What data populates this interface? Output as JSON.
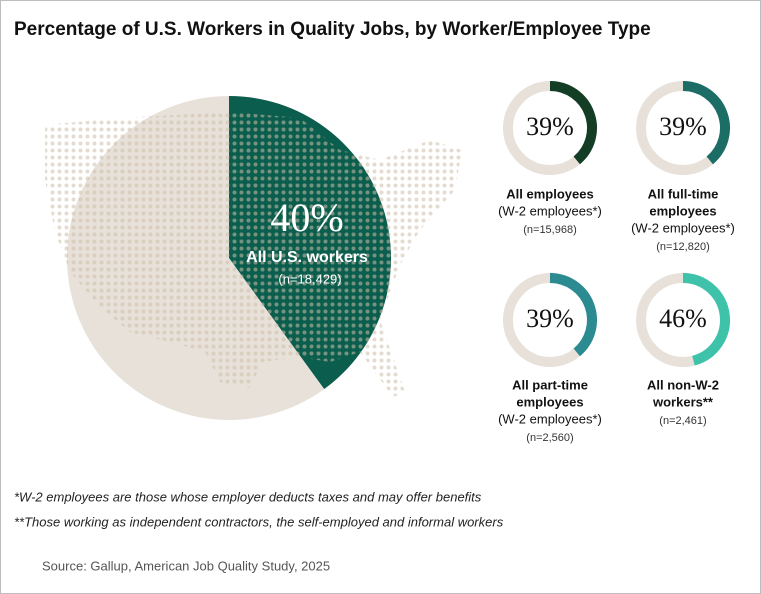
{
  "title": "Percentage of U.S. Workers in Quality Jobs, by Worker/Employee Type",
  "chart_data": [
    {
      "type": "pie",
      "values": [
        40
      ],
      "value_labels": [
        "40%"
      ],
      "label_lines": [
        "All U.S. workers"
      ],
      "n": "(n=18,429)",
      "color": "#0b5e4e",
      "track_color": "#e8e1da"
    },
    {
      "type": "donut",
      "values": [
        39
      ],
      "value_labels": [
        "39%"
      ],
      "label_lines": [
        "All employees"
      ],
      "sublabel": "(W-2 employees*)",
      "n": "(n=15,968)",
      "color": "#133d24",
      "track_color": "#e8e1da"
    },
    {
      "type": "donut",
      "values": [
        39
      ],
      "value_labels": [
        "39%"
      ],
      "label_lines": [
        "All full-time",
        "employees"
      ],
      "sublabel": "(W-2 employees*)",
      "n": "(n=12,820)",
      "color": "#1b6d66",
      "track_color": "#e8e1da"
    },
    {
      "type": "donut",
      "values": [
        39
      ],
      "value_labels": [
        "39%"
      ],
      "label_lines": [
        "All part-time",
        "employees"
      ],
      "sublabel": "(W-2 employees*)",
      "n": "(n=2,560)",
      "color": "#2b8b91",
      "track_color": "#e8e1da"
    },
    {
      "type": "donut",
      "values": [
        46
      ],
      "value_labels": [
        "46%"
      ],
      "label_lines": [
        "All non-W-2",
        "workers**"
      ],
      "n": "(n=2,461)",
      "color": "#3ec2aa",
      "track_color": "#e8e1da"
    }
  ],
  "footnotes": [
    "*W-2 employees are those whose employer deducts taxes and may offer benefits",
    "**Those working as independent contractors, the self-employed and informal workers"
  ],
  "source": "Source: Gallup, American Job Quality Study, 2025"
}
